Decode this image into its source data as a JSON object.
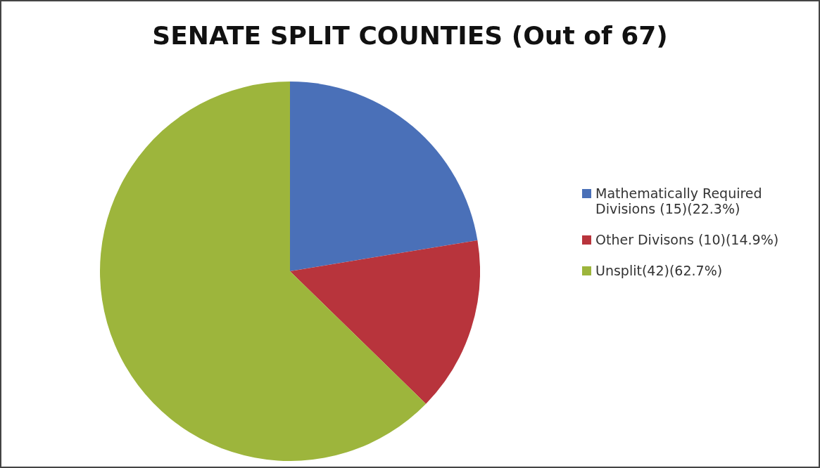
{
  "chart_data": {
    "type": "pie",
    "title": "SENATE SPLIT COUNTIES (Out of 67)",
    "categories": [
      "Mathematically Required Divisions (15)(22.3%)",
      "Other Divisons (10)(14.9%)",
      "Unsplit(42)(62.7%)"
    ],
    "values": [
      15,
      10,
      42
    ],
    "colors": [
      "#4a70b8",
      "#b8343c",
      "#9db53c"
    ],
    "legend": "right"
  }
}
